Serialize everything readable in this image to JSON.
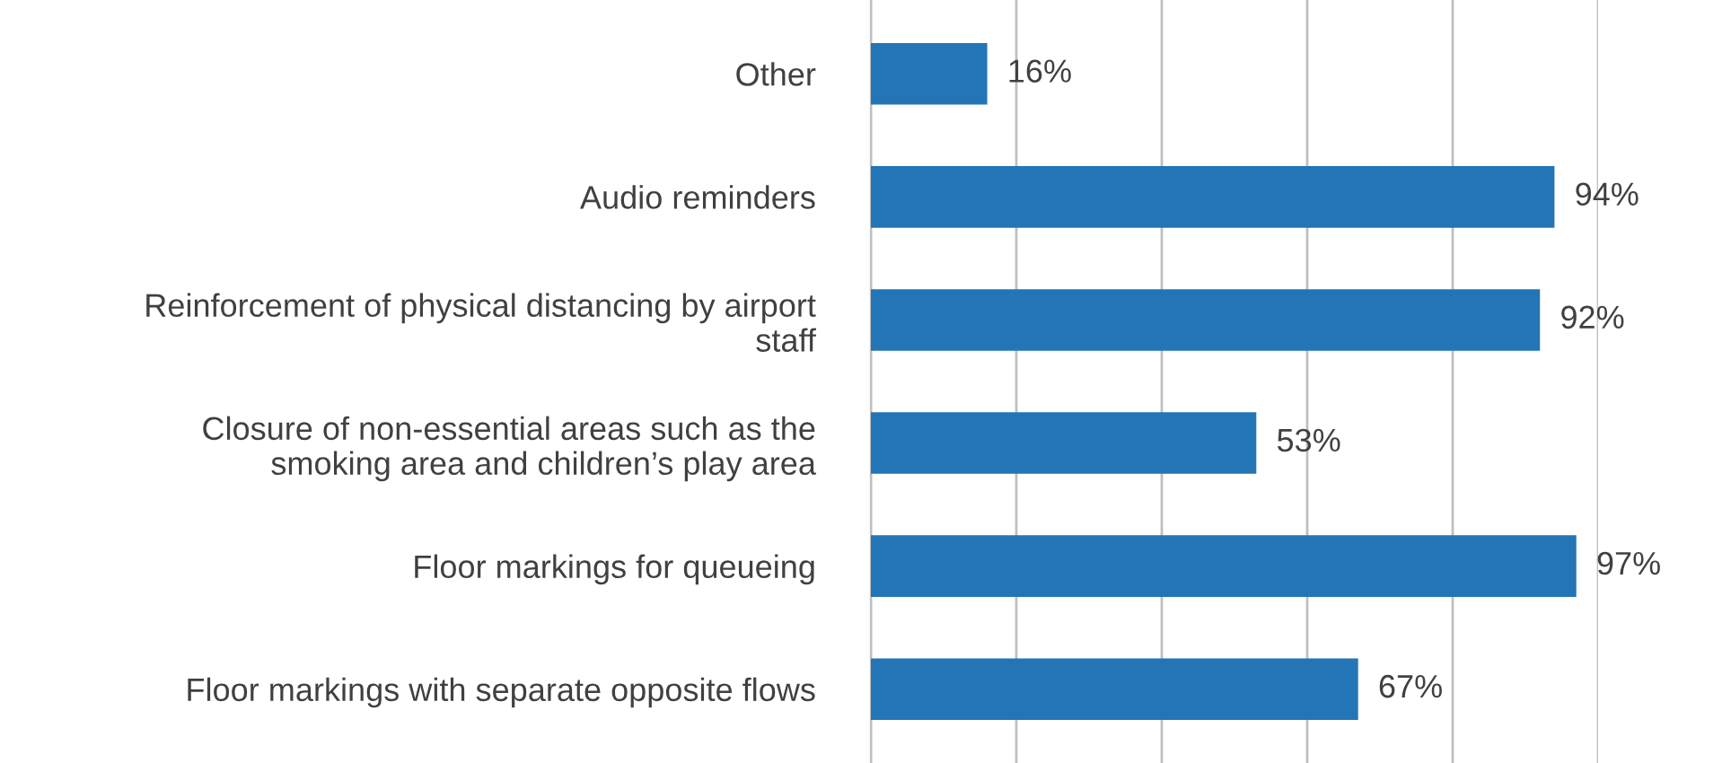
{
  "chart_data": {
    "type": "bar",
    "orientation": "horizontal",
    "categories": [
      "Other",
      "Audio reminders",
      "Reinforcement of physical distancing by airport staff",
      "Closure of non-essential areas such as the smoking area and children’s play area",
      "Floor markings for queueing",
      "Floor markings with separate opposite flows"
    ],
    "values": [
      16,
      94,
      92,
      53,
      97,
      67
    ],
    "value_labels": [
      "16%",
      "94%",
      "92%",
      "53%",
      "97%",
      "67%"
    ],
    "color": "#2475b5",
    "xlim": [
      0,
      100
    ],
    "xticks": [
      {
        "value": 0,
        "label": null
      },
      {
        "value": 20,
        "label": null
      },
      {
        "value": 40,
        "label": null
      },
      {
        "value": 60,
        "label": null
      },
      {
        "value": 80,
        "label": null
      },
      {
        "value": 100,
        "label": null
      }
    ],
    "grid": "x",
    "tick_labels": "y"
  }
}
